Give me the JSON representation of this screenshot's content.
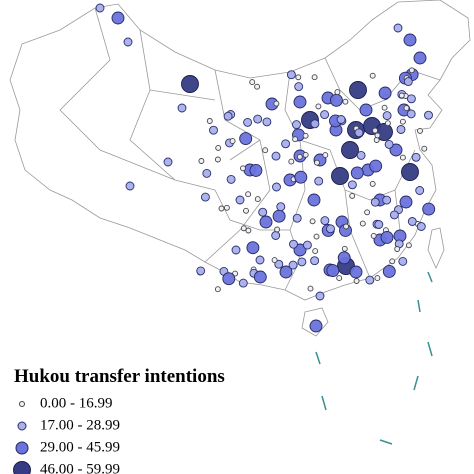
{
  "legend": {
    "title": "Hukou transfer intentions",
    "items": [
      {
        "label": "0.00 - 16.99",
        "color": "#eef0fb"
      },
      {
        "label": "17.00 - 28.99",
        "color": "#a9b0ea"
      },
      {
        "label": "29.00 - 45.99",
        "color": "#6b73dc"
      },
      {
        "label": "46.00 - 59.99",
        "color": "#353c84"
      }
    ]
  }
}
